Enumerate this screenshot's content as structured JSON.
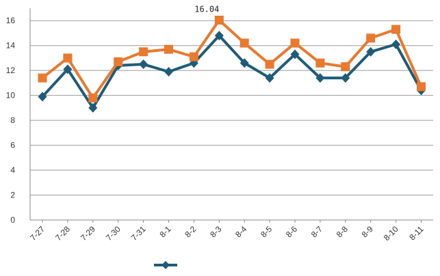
{
  "chart_data": {
    "type": "line",
    "categories": [
      "7-27",
      "7-28",
      "7-29",
      "7-30",
      "7-31",
      "8-1",
      "8-2",
      "8-3",
      "8-4",
      "8-5",
      "8-6",
      "8-7",
      "8-8",
      "8-9",
      "8-10",
      "8-11"
    ],
    "series": [
      {
        "name": "",
        "color": "#1f5c7a",
        "marker": "diamond",
        "values": [
          9.9,
          12.1,
          9.0,
          12.4,
          12.5,
          11.9,
          12.6,
          14.8,
          12.6,
          11.4,
          13.3,
          11.4,
          11.4,
          13.5,
          14.1,
          10.4
        ]
      },
      {
        "name": "",
        "color": "#e8792f",
        "marker": "square",
        "values": [
          11.4,
          13.0,
          9.8,
          12.7,
          13.5,
          13.7,
          13.1,
          16.04,
          14.2,
          12.5,
          14.2,
          12.6,
          12.3,
          14.6,
          15.3,
          10.7
        ]
      }
    ],
    "ylim": [
      0,
      17
    ],
    "y_ticks": [
      0,
      2,
      4,
      6,
      8,
      10,
      12,
      14,
      16
    ],
    "grid": "horizontal",
    "annotations": [
      {
        "series": 1,
        "index": 7,
        "text": "16.04"
      }
    ],
    "legend": {
      "placement": "bottom",
      "entries": [
        {
          "series": 0,
          "label": ""
        }
      ]
    }
  }
}
